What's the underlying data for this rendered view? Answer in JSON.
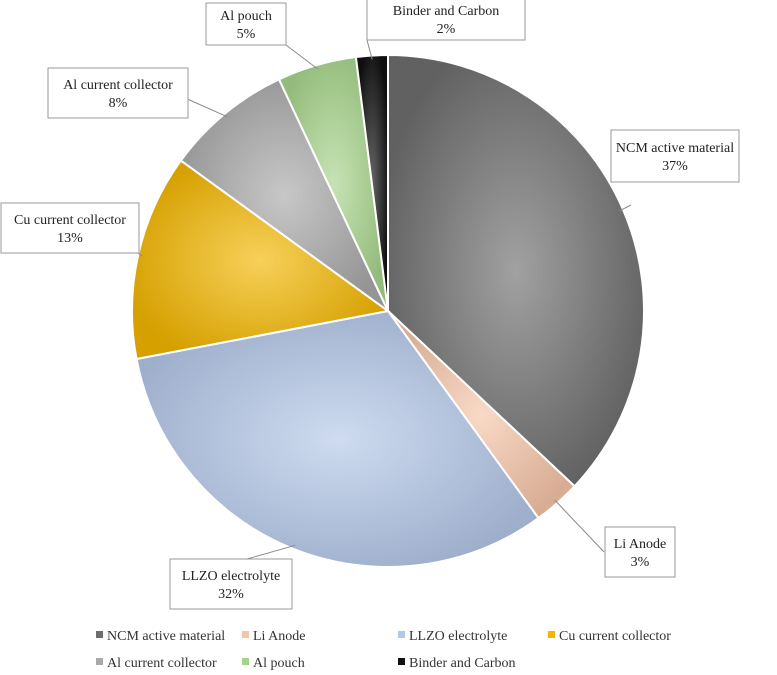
{
  "chart_data": {
    "type": "pie",
    "title": "",
    "categories": [
      "NCM active material",
      "Li Anode",
      "LLZO electrolyte",
      "Cu current collector",
      "Al current collector",
      "Al pouch",
      "Binder and Carbon"
    ],
    "values": [
      37,
      3,
      32,
      13,
      8,
      5,
      2
    ],
    "labels": [
      "37%",
      "3%",
      "32%",
      "13%",
      "8%",
      "5%",
      "2%"
    ],
    "legend_position": "bottom",
    "colors": {
      "NCM active material": "#6e6e6e",
      "Li Anode": "#f5c5a8",
      "LLZO electrolyte": "#b3c7e8",
      "Cu current collector": "#f2b600",
      "Al current collector": "#a9a9a9",
      "Al pouch": "#a7d48c",
      "Binder and Carbon": "#111111"
    }
  }
}
